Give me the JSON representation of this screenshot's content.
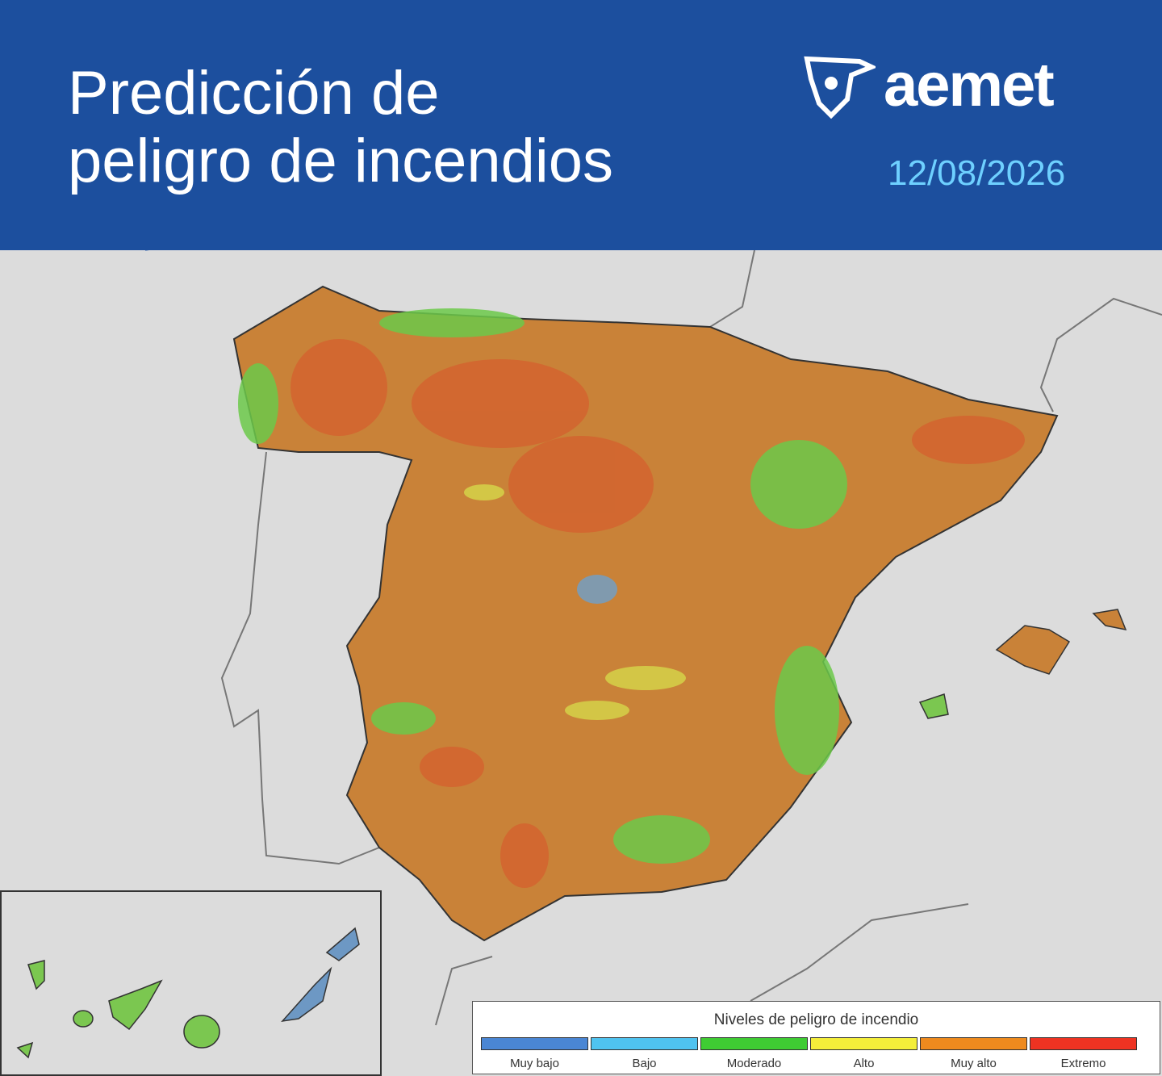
{
  "header": {
    "title_lines": [
      "Predicción de",
      "peligro de incendios"
    ],
    "logo": "aemet",
    "date": "12/08/2026"
  },
  "legend": {
    "title": "Niveles de peligro de incendio",
    "levels": [
      {
        "label": "Muy bajo",
        "color": "#4a86d4"
      },
      {
        "label": "Bajo",
        "color": "#4fc3f0"
      },
      {
        "label": "Moderado",
        "color": "#3fcc33"
      },
      {
        "label": "Alto",
        "color": "#f4ee3a"
      },
      {
        "label": "Muy alto",
        "color": "#ee8a1e"
      },
      {
        "label": "Extremo",
        "color": "#ee3322"
      }
    ]
  }
}
